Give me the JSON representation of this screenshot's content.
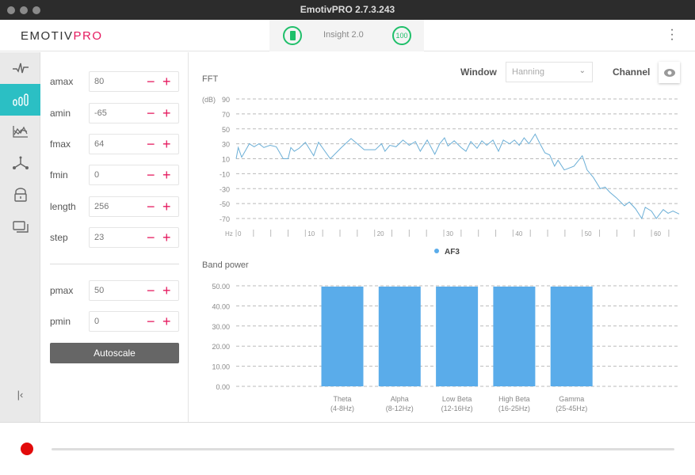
{
  "window": {
    "title": "EmotivPRO 2.7.3.243"
  },
  "header": {
    "logo_left": "EMOTIV",
    "logo_right": "PRO",
    "device_name": "Insight 2.0",
    "signal_quality": "100",
    "battery_icon": "battery-icon",
    "menu_icon": "more-vertical-icon"
  },
  "rail": {
    "items": [
      {
        "name": "raw-eeg",
        "icon": "waveform-icon"
      },
      {
        "name": "fft",
        "icon": "bar-chart-icon",
        "active": true
      },
      {
        "name": "performance",
        "icon": "line-chart-icon"
      },
      {
        "name": "motion",
        "icon": "axes-icon"
      },
      {
        "name": "markers",
        "icon": "lock-icon"
      },
      {
        "name": "devices",
        "icon": "screens-icon"
      }
    ],
    "collapse_icon": "collapse-left-icon"
  },
  "controls": [
    {
      "label": "amax",
      "value": "80"
    },
    {
      "label": "amin",
      "value": "-65"
    },
    {
      "label": "fmax",
      "value": "64"
    },
    {
      "label": "fmin",
      "value": "0"
    },
    {
      "label": "length",
      "value": "256"
    },
    {
      "label": "step",
      "value": "23"
    },
    {
      "label": "pmax",
      "value": "50"
    },
    {
      "label": "pmin",
      "value": "0"
    }
  ],
  "minus": "−",
  "plus": "+",
  "autoscale_label": "Autoscale",
  "fft_panel": {
    "title": "FFT",
    "window_label": "Window",
    "window_value": "Hanning",
    "channel_label": "Channel",
    "eye_icon": "eye-icon"
  },
  "band_panel": {
    "title": "Band power"
  },
  "colors": {
    "accent": "#2bbfc4",
    "brand": "#e5195e",
    "line": "#6aaed6",
    "bar": "#5aacea",
    "record": "#e20b0b",
    "good": "#1fbf6a"
  },
  "chart_data": [
    {
      "type": "line",
      "title": "FFT",
      "ylabel": "(dB)",
      "xlabel": "Hz",
      "ylim": [
        -70,
        90
      ],
      "xlim": [
        0,
        64
      ],
      "yticks": [
        90,
        70,
        50,
        30,
        10,
        -10,
        -30,
        -50,
        -70
      ],
      "xticks": [
        0,
        10,
        20,
        30,
        40,
        50,
        60
      ],
      "grid": true,
      "legend": "bottom",
      "series": [
        {
          "name": "AF3",
          "x": [
            0,
            0.3,
            0.8,
            1.9,
            2.6,
            3.3,
            4,
            4.9,
            5.8,
            6.8,
            7.5,
            7.9,
            8.4,
            9.1,
            10,
            11.2,
            11.9,
            13.6,
            15.2,
            16.6,
            17.5,
            18.5,
            20.1,
            21,
            21.5,
            22.2,
            23.1,
            24.1,
            25,
            25.9,
            26.6,
            27.6,
            28.7,
            29.4,
            30.1,
            30.6,
            31.5,
            32.5,
            33.2,
            33.9,
            34.8,
            35.5,
            36.2,
            37.1,
            37.9,
            38.6,
            39.5,
            40.2,
            40.9,
            41.6,
            42.3,
            43.2,
            43.9,
            44.6,
            45.3,
            46,
            46.5,
            47.4,
            48.8,
            50,
            50.7,
            51.6,
            52.6,
            53.3,
            54,
            54.9,
            56.1,
            56.8,
            57.7,
            58.6,
            59.1,
            60,
            60.7,
            61.7,
            62.4,
            63.1,
            64
          ],
          "y": [
            10,
            25,
            12,
            30,
            26,
            30,
            25,
            28,
            26,
            10,
            10,
            25,
            20,
            24,
            32,
            14,
            32,
            10,
            25,
            37,
            30,
            22,
            22,
            30,
            20,
            28,
            26,
            35,
            28,
            33,
            20,
            35,
            16,
            30,
            38,
            27,
            34,
            25,
            20,
            33,
            24,
            34,
            28,
            35,
            20,
            35,
            30,
            35,
            28,
            38,
            30,
            43,
            30,
            18,
            15,
            0,
            8,
            -5,
            0,
            14,
            -5,
            -15,
            -30,
            -28,
            -35,
            -42,
            -53,
            -48,
            -57,
            -70,
            -55,
            -60,
            -70,
            -58,
            -63,
            -60,
            -64
          ]
        }
      ]
    },
    {
      "type": "bar",
      "title": "Band power",
      "ylim": [
        0,
        50
      ],
      "yticks": [
        "50.00",
        "40.00",
        "30.00",
        "20.00",
        "10.00",
        "0.00"
      ],
      "grid": true,
      "categories": [
        [
          "Theta",
          "(4-8Hz)"
        ],
        [
          "Alpha",
          "(8-12Hz)"
        ],
        [
          "Low Beta",
          "(12-16Hz)"
        ],
        [
          "High Beta",
          "(16-25Hz)"
        ],
        [
          "Gamma",
          "(25-45Hz)"
        ]
      ],
      "values": [
        50,
        50,
        50,
        50,
        50
      ]
    }
  ]
}
